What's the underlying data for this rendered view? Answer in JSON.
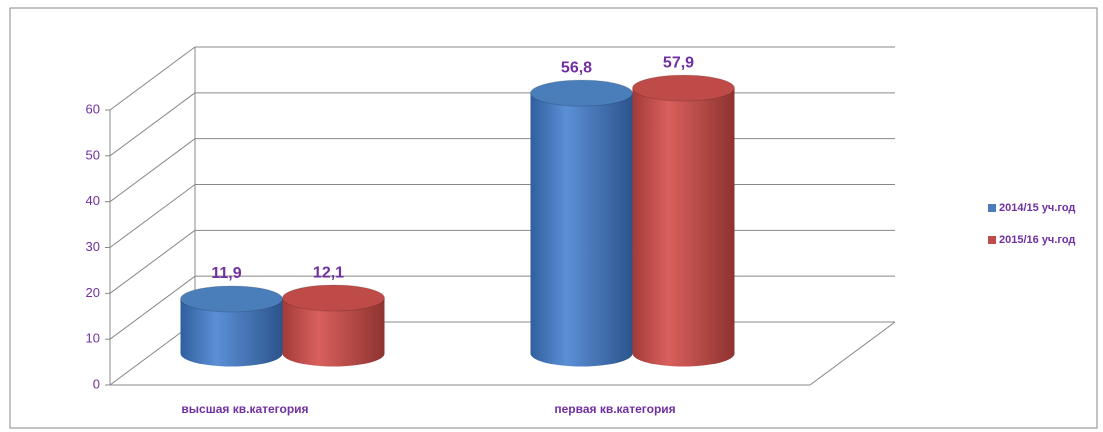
{
  "chart_data": {
    "type": "bar3d",
    "categories": [
      "высшая  кв.категория",
      "первая кв.категория"
    ],
    "series": [
      {
        "name": "2014/15 уч.год",
        "color": "#4a7ebb",
        "values": [
          11.9,
          56.8
        ],
        "value_labels": [
          "11,9",
          "56,8"
        ]
      },
      {
        "name": "2015/16 уч.год",
        "color": "#be4b48",
        "values": [
          12.1,
          57.9
        ],
        "value_labels": [
          "12,1",
          "57,9"
        ]
      }
    ],
    "ylim": [
      0,
      60
    ],
    "yticks": [
      0,
      10,
      20,
      30,
      40,
      50,
      60
    ],
    "grid": true,
    "legend": "right"
  }
}
